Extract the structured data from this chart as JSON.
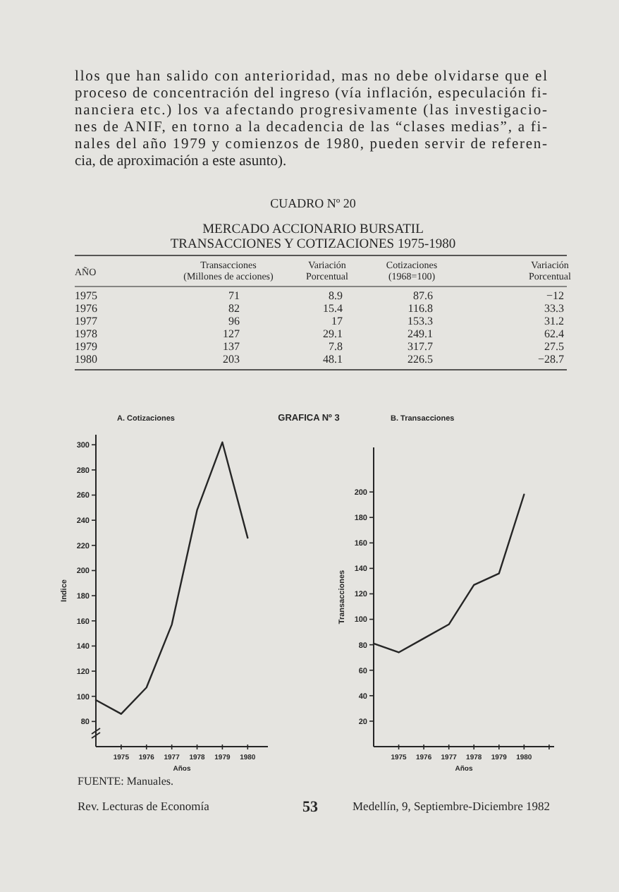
{
  "chart_data": [
    {
      "type": "heatmap",
      "title": "CUADRO Nº 20",
      "subtitle": "MERCADO ACCIONARIO BURSATIL\nTRANSACCIONES Y COTIZACIONES 1975-1980",
      "ylabel": "AÑO",
      "categories": [
        "Transacciones\n(Millones de acciones)",
        "Variación\nPorcentual",
        "Cotizaciones\n(1968=100)",
        "Variación\nPorcentual"
      ],
      "y_categories": [
        "1975",
        "1976",
        "1977",
        "1978",
        "1979",
        "1980"
      ],
      "cells": [
        [
          71,
          8.9,
          87.6,
          -12
        ],
        [
          82,
          15.4,
          116.8,
          33.3
        ],
        [
          96,
          17,
          153.3,
          31.2
        ],
        [
          127,
          29.1,
          249.1,
          62.4
        ],
        [
          137,
          7.8,
          317.7,
          27.5
        ],
        [
          203,
          48.1,
          226.5,
          -28.7
        ]
      ],
      "data_labels": true,
      "annotations": [
        "llos que han salido con anterioridad, mas no debe olvidarse que el",
        "proceso de concentración del ingreso (vía inflación, especulación fi-",
        "nanciera etc.) los va afectando progresivamente (las investigacio-",
        "nes de ANIF, en torno a la decadencia de las “clases medias”, a fi-",
        "nales del año 1979 y comienzos de 1980, pueden servir de referen-",
        "cia, de aproximación a este asunto)."
      ]
    },
    {
      "type": "line",
      "title": "A. Cotizaciones",
      "xlabel": "Años",
      "ylabel": "Indice",
      "x": [
        1974,
        1975,
        1976,
        1977,
        1978,
        1979,
        1980
      ],
      "xlim": [
        1974,
        1980.8
      ],
      "xticks": [
        1975,
        1976,
        1977,
        1978,
        1979,
        1980
      ],
      "ylim": [
        60,
        308
      ],
      "yticks": [
        80,
        100,
        120,
        140,
        160,
        180,
        200,
        220,
        240,
        260,
        280,
        300
      ],
      "series": [
        {
          "color": "#262626",
          "values": [
            97,
            86,
            107,
            157,
            248,
            302,
            226
          ]
        }
      ],
      "annotations": [
        "GRAFICA Nº 3",
        "FUENTE: Manuales."
      ]
    },
    {
      "type": "line",
      "title": "B. Transacciones",
      "xlabel": "Años",
      "ylabel": "Transacciones",
      "x": [
        1974,
        1975,
        1976,
        1977,
        1978,
        1979,
        1980
      ],
      "xlim": [
        1974,
        1981.2
      ],
      "xticks": [
        1975,
        1976,
        1977,
        1978,
        1979,
        1980,
        {
          "value": 1981,
          "label": null
        }
      ],
      "ylim": [
        0,
        235
      ],
      "yticks": [
        20,
        40,
        60,
        80,
        100,
        120,
        140,
        160,
        180,
        200
      ],
      "series": [
        {
          "color": "#262626",
          "values": [
            81,
            74,
            85,
            96,
            127,
            136,
            198
          ]
        }
      ],
      "annotations": [
        "Rev. Lecturas de Economía",
        "53",
        "Medellín, 9, Septiembre-Diciembre 1982"
      ]
    }
  ]
}
